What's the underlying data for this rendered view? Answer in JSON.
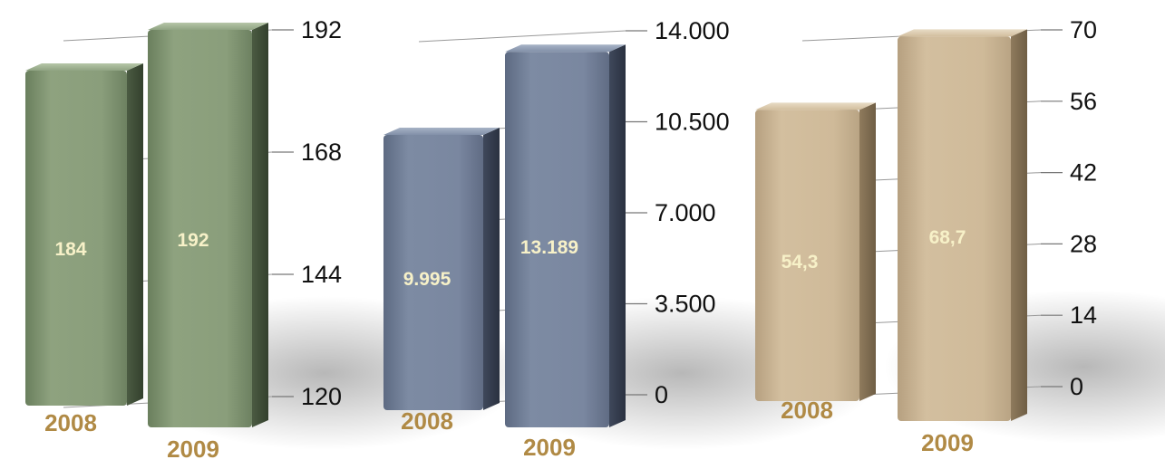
{
  "chart_data": [
    {
      "type": "bar",
      "categories": [
        "2008",
        "2009"
      ],
      "values": [
        184,
        192
      ],
      "value_labels": [
        "184",
        "192"
      ],
      "ylim": [
        120,
        192
      ],
      "ticks": [
        120,
        144,
        168,
        192
      ],
      "tick_labels": [
        "120",
        "144",
        "168",
        "192"
      ],
      "color": "#8a9e7c"
    },
    {
      "type": "bar",
      "categories": [
        "2008",
        "2009"
      ],
      "values": [
        9995,
        13189
      ],
      "value_labels": [
        "9.995",
        "13.189"
      ],
      "ylim": [
        0,
        14000
      ],
      "ticks": [
        0,
        3500,
        7000,
        10500,
        14000
      ],
      "tick_labels": [
        "0",
        "3.500",
        "7.000",
        "10.500",
        "14.000"
      ],
      "color": "#7a88a0"
    },
    {
      "type": "bar",
      "categories": [
        "2008",
        "2009"
      ],
      "values": [
        54.3,
        68.7
      ],
      "value_labels": [
        "54,3",
        "68,7"
      ],
      "ylim": [
        0,
        70
      ],
      "ticks": [
        0,
        14,
        28,
        42,
        56,
        70
      ],
      "tick_labels": [
        "0",
        "14",
        "28",
        "42",
        "56",
        "70"
      ],
      "color": "#cdb899"
    }
  ],
  "colors": {
    "year_label": "#b08a45",
    "bar_value_label": "#f7f1c8",
    "grid_line": "#999999"
  }
}
